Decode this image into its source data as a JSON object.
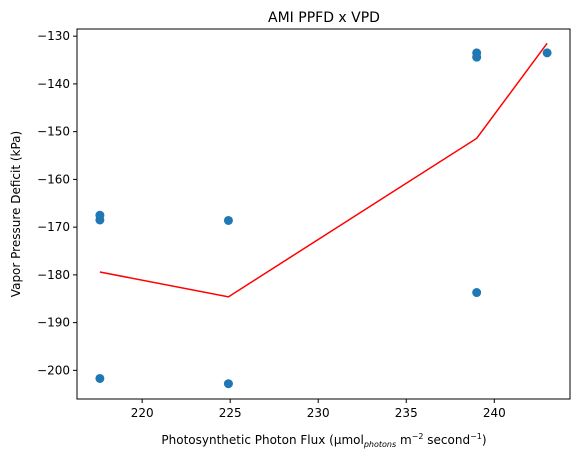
{
  "chart_data": {
    "type": "scatter",
    "title": "AMI PPFD x VPD",
    "xlabel": {
      "prefix": "Photosynthetic Photon Flux (μmol",
      "sub": "photons",
      "mid1": " m",
      "sup1": "−2",
      "mid2": " second",
      "sup2": "−1",
      "suffix": ")"
    },
    "ylabel": "Vapor Pressure Deficit (kPa)",
    "xlim": [
      216.3,
      244.3
    ],
    "ylim": [
      -206,
      -128.5
    ],
    "xticks": [
      220,
      225,
      230,
      235,
      240
    ],
    "yticks": [
      -200,
      -190,
      -180,
      -170,
      -160,
      -150,
      -140,
      -130
    ],
    "grid": false,
    "colors": {
      "points": "#1f77b4",
      "line": "#ff0000"
    },
    "series": [
      {
        "type": "scatter",
        "x": [
          217.6,
          217.6,
          217.6,
          224.9,
          224.9,
          239.0,
          239.0,
          239.0,
          243.0
        ],
        "y": [
          -167.5,
          -168.5,
          -201.7,
          -168.6,
          -202.8,
          -133.5,
          -134.4,
          -183.7,
          -133.5
        ]
      },
      {
        "type": "line",
        "x": [
          217.6,
          224.9,
          239.0,
          243.0
        ],
        "y": [
          -179.4,
          -184.6,
          -151.4,
          -131.5
        ]
      }
    ]
  }
}
